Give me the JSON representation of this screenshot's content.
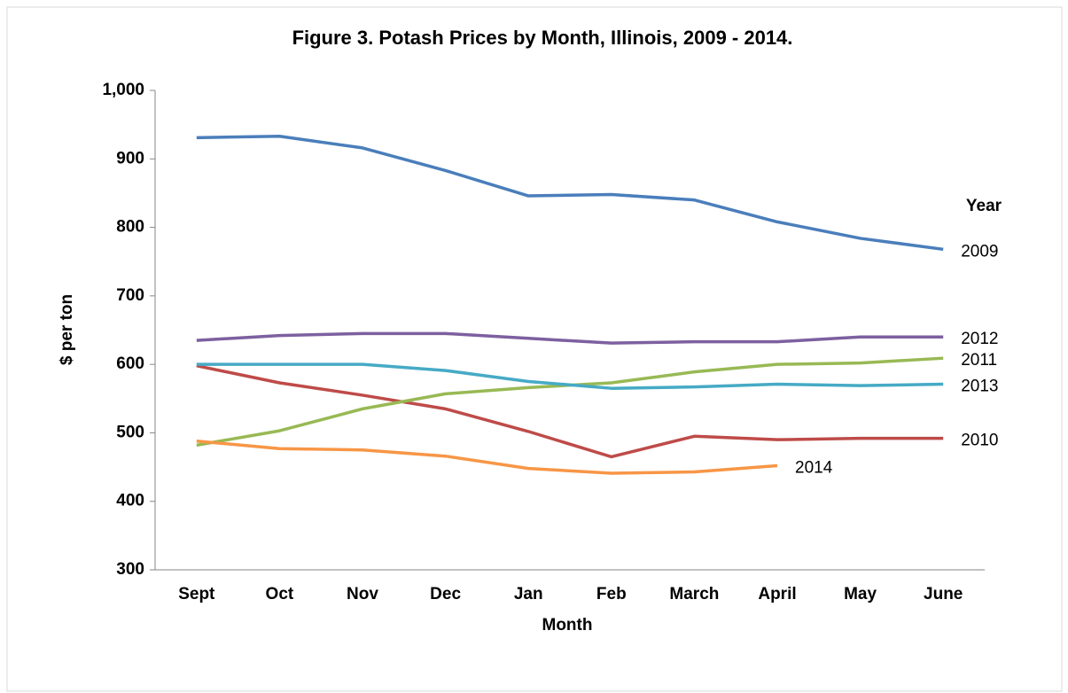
{
  "chart_data": {
    "type": "line",
    "title": "Figure 3.  Potash Prices by Month, Illinois, 2009 - 2014.",
    "x_label": "Month",
    "y_label": "$ per ton",
    "legend_title": "Year",
    "categories": [
      "Sept",
      "Oct",
      "Nov",
      "Dec",
      "Jan",
      "Feb",
      "March",
      "April",
      "May",
      "June"
    ],
    "series": [
      {
        "name": "2009",
        "color": "#4a7ebb",
        "values": [
          931,
          933,
          916,
          883,
          846,
          848,
          840,
          808,
          784,
          768
        ]
      },
      {
        "name": "2010",
        "color": "#be4b48",
        "values": [
          598,
          573,
          555,
          535,
          502,
          465,
          495,
          490,
          492,
          492
        ]
      },
      {
        "name": "2011",
        "color": "#98b954",
        "values": [
          482,
          503,
          535,
          557,
          566,
          573,
          589,
          600,
          602,
          609
        ]
      },
      {
        "name": "2012",
        "color": "#7d60a0",
        "values": [
          635,
          642,
          645,
          645,
          638,
          631,
          633,
          633,
          640,
          640
        ]
      },
      {
        "name": "2013",
        "color": "#46aac5",
        "values": [
          600,
          600,
          600,
          591,
          575,
          565,
          567,
          571,
          569,
          571
        ]
      },
      {
        "name": "2014",
        "color": "#f79646",
        "values": [
          488,
          477,
          475,
          466,
          448,
          441,
          443,
          452,
          null,
          null
        ]
      }
    ],
    "ylim": [
      300,
      1000
    ],
    "yticks": [
      300,
      400,
      500,
      600,
      700,
      800,
      900,
      {
        "value": 1000,
        "label": "1,000"
      }
    ],
    "grid": false
  }
}
